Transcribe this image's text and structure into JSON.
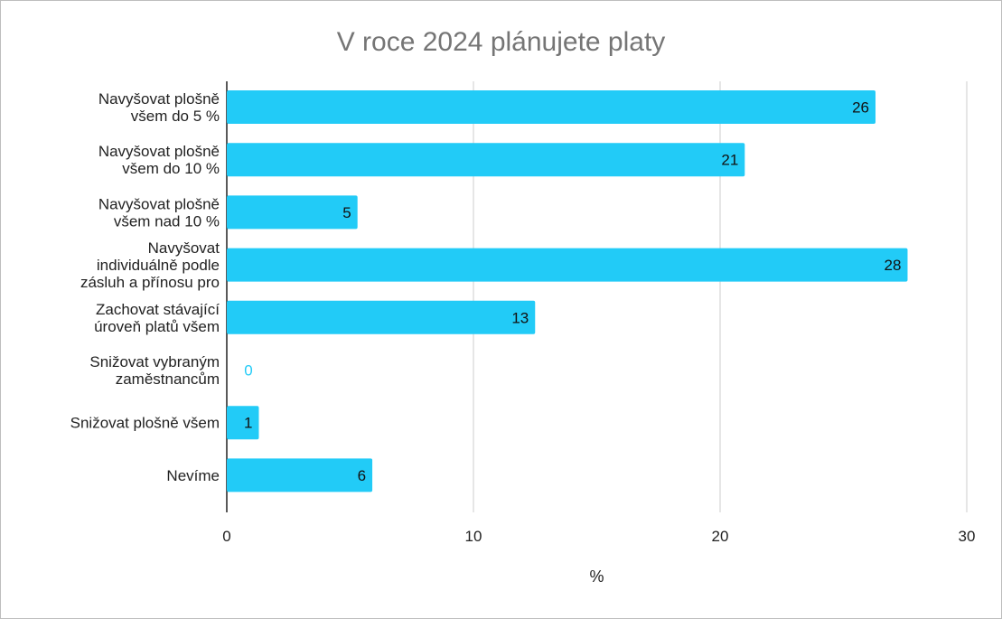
{
  "chart_data": {
    "type": "bar",
    "orientation": "horizontal",
    "title": "V roce 2024 plánujete platy",
    "xlabel": "%",
    "ylabel": "",
    "xlim": [
      0,
      30
    ],
    "xticks": [
      0,
      10,
      20,
      30
    ],
    "grid": true,
    "bar_color": "#22CBF7",
    "categories": [
      [
        "Navyšovat plošně",
        "všem do 5 %"
      ],
      [
        "Navyšovat plošně",
        "všem do 10 %"
      ],
      [
        "Navyšovat plošně",
        "všem nad 10 %"
      ],
      [
        "Navyšovat",
        "individuálně podle",
        "zásluh a přínosu pro"
      ],
      [
        "Zachovat stávající",
        "úroveň platů všem"
      ],
      [
        "Snižovat vybraným",
        "zaměstnancům"
      ],
      [
        "Snižovat plošně všem"
      ],
      [
        "Nevíme"
      ]
    ],
    "values": [
      26.3,
      21,
      5.3,
      27.6,
      12.5,
      0,
      1.3,
      5.9
    ],
    "data_labels": [
      "26",
      "21",
      "5",
      "28",
      "13",
      "0",
      "1",
      "6"
    ]
  }
}
